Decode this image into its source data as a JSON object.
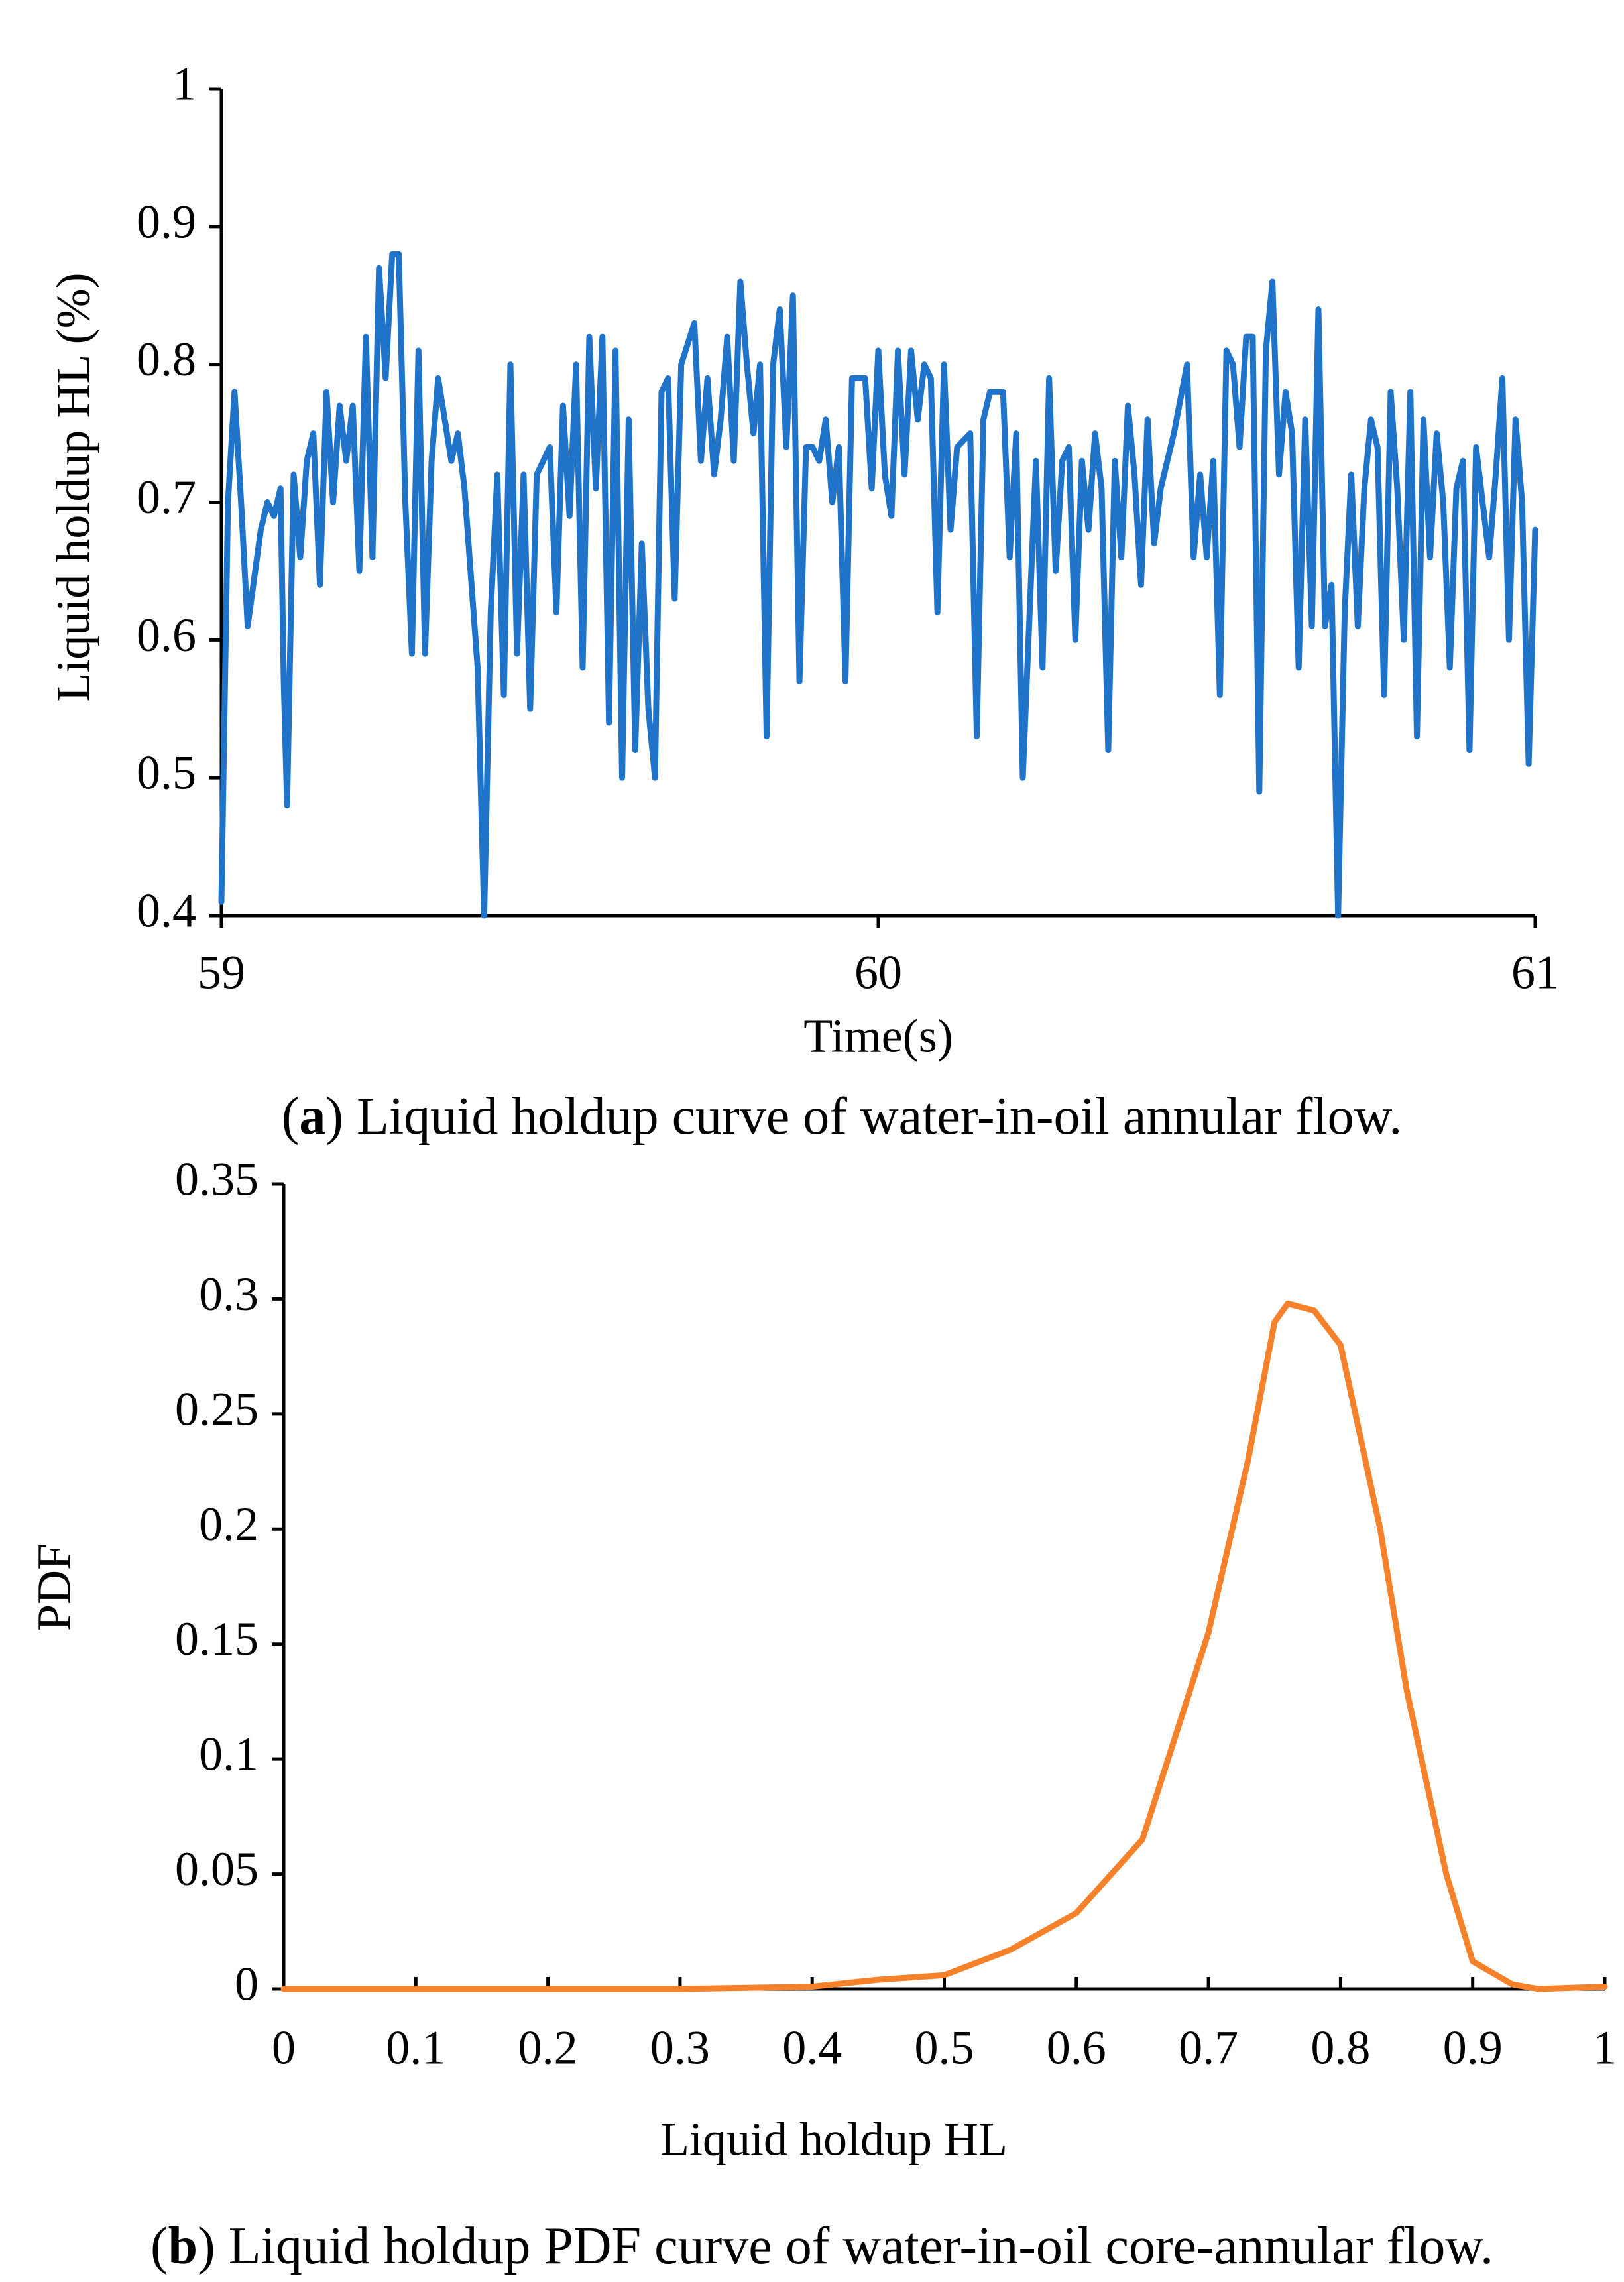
{
  "chart_data": [
    {
      "type": "line",
      "caption": [
        "(",
        "a",
        ") Liquid holdup curve of water-in-oil annular flow."
      ],
      "xlabel": "Time(s)",
      "ylabel": "Liquid holdup HL (%)",
      "xlim": [
        59,
        61
      ],
      "xticks": [
        59,
        60,
        61
      ],
      "ylim": [
        0.4,
        1
      ],
      "yticks": [
        0.4,
        0.5,
        0.6,
        0.7,
        0.8,
        0.9,
        1
      ],
      "series": [
        {
          "color": "#1f73c8",
          "x": [
            59.0,
            59.01,
            59.02,
            59.03,
            59.04,
            59.06,
            59.07,
            59.08,
            59.09,
            59.095,
            59.1,
            59.11,
            59.12,
            59.13,
            59.14,
            59.15,
            59.16,
            59.17,
            59.18,
            59.19,
            59.2,
            59.21,
            59.22,
            59.23,
            59.24,
            59.25,
            59.26,
            59.27,
            59.28,
            59.29,
            59.3,
            59.31,
            59.32,
            59.33,
            59.35,
            59.36,
            59.37,
            59.39,
            59.4,
            59.41,
            59.42,
            59.43,
            59.44,
            59.45,
            59.46,
            59.47,
            59.48,
            59.5,
            59.51,
            59.52,
            59.53,
            59.54,
            59.55,
            59.56,
            59.57,
            59.58,
            59.59,
            59.6,
            59.61,
            59.62,
            59.63,
            59.64,
            59.65,
            59.66,
            59.67,
            59.68,
            59.69,
            59.7,
            59.72,
            59.73,
            59.74,
            59.75,
            59.76,
            59.77,
            59.78,
            59.79,
            59.8,
            59.81,
            59.82,
            59.83,
            59.84,
            59.85,
            59.86,
            59.87,
            59.88,
            59.89,
            59.9,
            59.91,
            59.92,
            59.93,
            59.94,
            59.95,
            59.96,
            59.98,
            59.99,
            60.0,
            60.01,
            60.02,
            60.03,
            60.04,
            60.05,
            60.06,
            60.07,
            60.08,
            60.09,
            60.1,
            60.11,
            60.12,
            60.14,
            60.15,
            60.16,
            60.17,
            60.19,
            60.2,
            60.21,
            60.22,
            60.24,
            60.25,
            60.26,
            60.27,
            60.28,
            60.29,
            60.3,
            60.31,
            60.32,
            60.33,
            60.34,
            60.35,
            60.36,
            60.37,
            60.38,
            60.39,
            60.4,
            60.41,
            60.42,
            60.43,
            60.45,
            60.47,
            60.48,
            60.49,
            60.5,
            60.51,
            60.52,
            60.53,
            60.54,
            60.55,
            60.56,
            60.57,
            60.58,
            60.59,
            60.6,
            60.61,
            60.62,
            60.63,
            60.64,
            60.65,
            60.66,
            60.67,
            60.68,
            60.69,
            60.7,
            60.71,
            60.72,
            60.73,
            60.74,
            60.75,
            60.76,
            60.77,
            60.78,
            60.79,
            60.8,
            60.81,
            60.82,
            60.83,
            60.84,
            60.85,
            60.86,
            60.87,
            60.88,
            60.89,
            60.9,
            60.91,
            60.92,
            60.93,
            60.94,
            60.95,
            60.96,
            60.97,
            60.98,
            60.99,
            61.0
          ],
          "values": [
            0.41,
            0.7,
            0.78,
            0.7,
            0.61,
            0.68,
            0.7,
            0.69,
            0.71,
            0.57,
            0.48,
            0.72,
            0.66,
            0.73,
            0.75,
            0.64,
            0.78,
            0.7,
            0.77,
            0.73,
            0.77,
            0.65,
            0.82,
            0.66,
            0.87,
            0.79,
            0.88,
            0.88,
            0.7,
            0.59,
            0.81,
            0.59,
            0.73,
            0.79,
            0.73,
            0.75,
            0.71,
            0.58,
            0.4,
            0.62,
            0.72,
            0.56,
            0.8,
            0.59,
            0.72,
            0.55,
            0.72,
            0.74,
            0.62,
            0.77,
            0.69,
            0.8,
            0.58,
            0.82,
            0.71,
            0.82,
            0.54,
            0.81,
            0.5,
            0.76,
            0.52,
            0.67,
            0.55,
            0.5,
            0.78,
            0.79,
            0.63,
            0.8,
            0.83,
            0.73,
            0.79,
            0.72,
            0.76,
            0.82,
            0.73,
            0.86,
            0.8,
            0.75,
            0.8,
            0.53,
            0.8,
            0.84,
            0.74,
            0.85,
            0.57,
            0.74,
            0.74,
            0.73,
            0.76,
            0.7,
            0.74,
            0.57,
            0.79,
            0.79,
            0.71,
            0.81,
            0.72,
            0.69,
            0.81,
            0.72,
            0.81,
            0.76,
            0.8,
            0.79,
            0.62,
            0.8,
            0.68,
            0.74,
            0.75,
            0.53,
            0.76,
            0.78,
            0.78,
            0.66,
            0.75,
            0.5,
            0.73,
            0.58,
            0.79,
            0.65,
            0.73,
            0.74,
            0.6,
            0.73,
            0.68,
            0.75,
            0.71,
            0.52,
            0.73,
            0.66,
            0.77,
            0.72,
            0.64,
            0.76,
            0.67,
            0.71,
            0.75,
            0.8,
            0.66,
            0.72,
            0.66,
            0.73,
            0.56,
            0.81,
            0.8,
            0.74,
            0.82,
            0.82,
            0.49,
            0.81,
            0.86,
            0.72,
            0.78,
            0.75,
            0.58,
            0.76,
            0.61,
            0.84,
            0.61,
            0.64,
            0.4,
            0.62,
            0.72,
            0.61,
            0.71,
            0.76,
            0.74,
            0.56,
            0.78,
            0.71,
            0.6,
            0.78,
            0.53,
            0.76,
            0.66,
            0.75,
            0.7,
            0.58,
            0.71,
            0.73,
            0.52,
            0.74,
            0.7,
            0.66,
            0.72,
            0.79,
            0.6,
            0.76,
            0.7,
            0.51,
            0.68
          ]
        }
      ]
    },
    {
      "type": "line",
      "caption": [
        "(",
        "b",
        ") Liquid holdup PDF curve of water-in-oil core-annular flow."
      ],
      "xlabel": "Liquid holdup HL",
      "ylabel": "PDF",
      "xlim": [
        0,
        1
      ],
      "xticks": [
        0,
        0.1,
        0.2,
        0.3,
        0.4,
        0.5,
        0.6,
        0.7,
        0.8,
        0.9,
        1
      ],
      "ylim": [
        0,
        0.35
      ],
      "yticks": [
        0,
        0.05,
        0.1,
        0.15,
        0.2,
        0.25,
        0.3,
        0.35
      ],
      "series": [
        {
          "color": "#f5822a",
          "x": [
            0,
            0.1,
            0.2,
            0.3,
            0.35,
            0.4,
            0.45,
            0.5,
            0.55,
            0.6,
            0.65,
            0.7,
            0.73,
            0.75,
            0.76,
            0.78,
            0.8,
            0.83,
            0.85,
            0.88,
            0.9,
            0.93,
            0.95,
            1
          ],
          "values": [
            0,
            0,
            0,
            0,
            0.0005,
            0.001,
            0.004,
            0.006,
            0.017,
            0.033,
            0.065,
            0.155,
            0.23,
            0.29,
            0.298,
            0.295,
            0.28,
            0.2,
            0.13,
            0.05,
            0.012,
            0.002,
            0,
            0.001
          ]
        }
      ]
    }
  ]
}
